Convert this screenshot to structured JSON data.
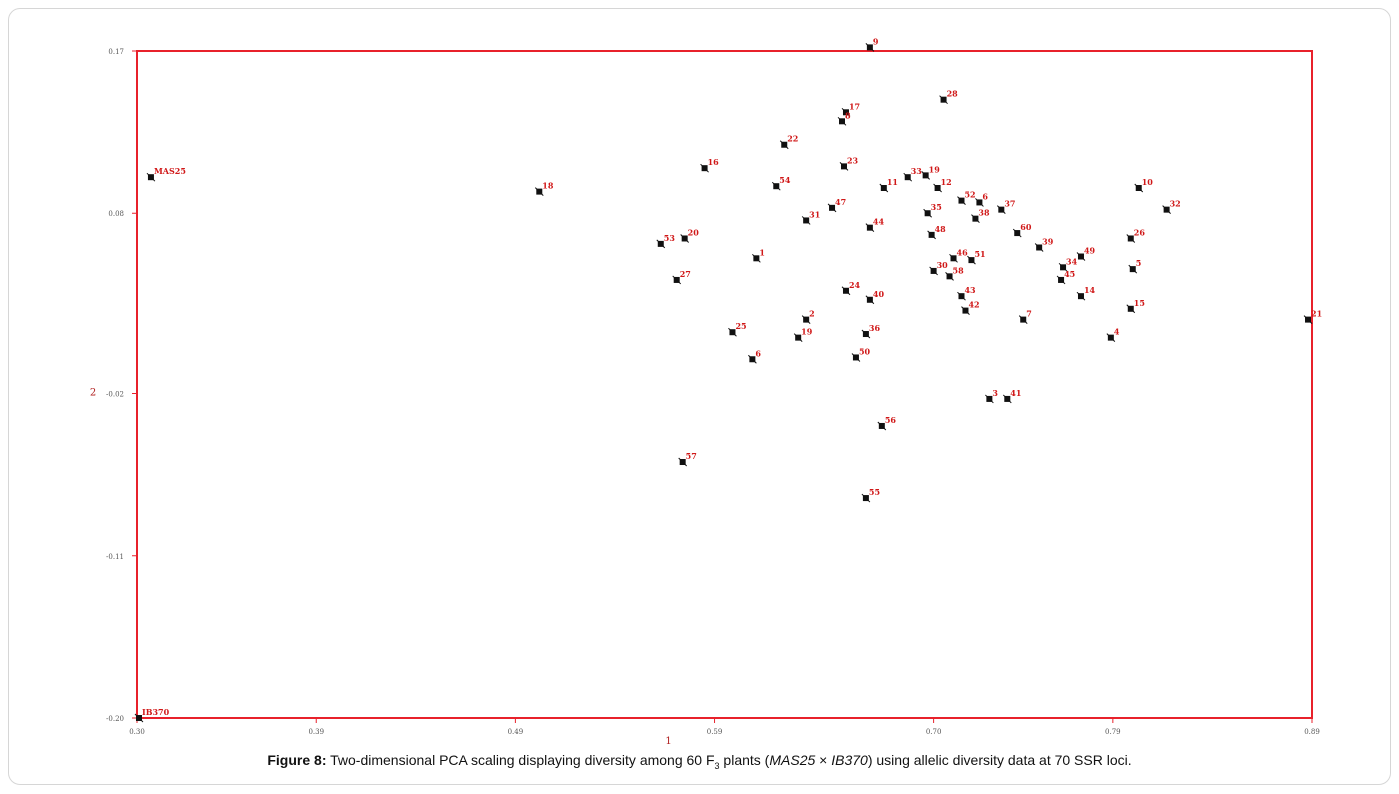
{
  "caption": {
    "label": "Figure 8:",
    "text_pre": "Two-dimensional PCA scaling displaying diversity among 60 F",
    "sub": "3",
    "text_mid": " plants (",
    "italic1": "MAS25",
    "times": " × ",
    "italic2": "IB370",
    "text_post": ") using allelic diversity data at 70 SSR loci."
  },
  "colors": {
    "axis": "#e8212b",
    "point": "#111111",
    "label": "#d01818",
    "tick_text": "#555555"
  },
  "chart_data": {
    "type": "scatter",
    "title": "",
    "xlabel": "1",
    "ylabel": "2",
    "xlim": [
      0.3,
      0.89
    ],
    "ylim": [
      -0.2,
      0.17
    ],
    "x_ticks": [
      0.3,
      0.39,
      0.49,
      0.59,
      0.7,
      0.79,
      0.89
    ],
    "x_tick_labels": [
      "0.30",
      "0.39",
      "0.49",
      "0.59",
      "0.70",
      "0.79",
      "0.89"
    ],
    "y_ticks": [
      -0.2,
      -0.11,
      -0.02,
      0.08,
      0.17
    ],
    "y_tick_labels": [
      "-0.20",
      "-0.11",
      "-0.02",
      "0.08",
      "0.17"
    ],
    "grid": false,
    "points": [
      {
        "label": "MAS25",
        "x": 0.307,
        "y": 0.1
      },
      {
        "label": "IB370",
        "x": 0.301,
        "y": -0.2
      },
      {
        "label": "18",
        "x": 0.502,
        "y": 0.092
      },
      {
        "label": "16",
        "x": 0.585,
        "y": 0.105
      },
      {
        "label": "22",
        "x": 0.625,
        "y": 0.118
      },
      {
        "label": "17",
        "x": 0.656,
        "y": 0.136
      },
      {
        "label": "8",
        "x": 0.654,
        "y": 0.131
      },
      {
        "label": "9",
        "x": 0.668,
        "y": 0.172
      },
      {
        "label": "28",
        "x": 0.705,
        "y": 0.143
      },
      {
        "label": "23",
        "x": 0.655,
        "y": 0.106
      },
      {
        "label": "33",
        "x": 0.687,
        "y": 0.1
      },
      {
        "label": "19",
        "x": 0.696,
        "y": 0.101
      },
      {
        "label": "54",
        "x": 0.621,
        "y": 0.095
      },
      {
        "label": "11",
        "x": 0.675,
        "y": 0.094
      },
      {
        "label": "12",
        "x": 0.702,
        "y": 0.094
      },
      {
        "label": "52",
        "x": 0.714,
        "y": 0.087
      },
      {
        "label": "6",
        "x": 0.723,
        "y": 0.086
      },
      {
        "label": "47",
        "x": 0.649,
        "y": 0.083
      },
      {
        "label": "37",
        "x": 0.734,
        "y": 0.082
      },
      {
        "label": "10",
        "x": 0.803,
        "y": 0.094
      },
      {
        "label": "32",
        "x": 0.817,
        "y": 0.082
      },
      {
        "label": "35",
        "x": 0.697,
        "y": 0.08
      },
      {
        "label": "31",
        "x": 0.636,
        "y": 0.076
      },
      {
        "label": "38",
        "x": 0.721,
        "y": 0.077
      },
      {
        "label": "44",
        "x": 0.668,
        "y": 0.072
      },
      {
        "label": "48",
        "x": 0.699,
        "y": 0.068
      },
      {
        "label": "60",
        "x": 0.742,
        "y": 0.069
      },
      {
        "label": "26",
        "x": 0.799,
        "y": 0.066
      },
      {
        "label": "20",
        "x": 0.575,
        "y": 0.066
      },
      {
        "label": "53",
        "x": 0.563,
        "y": 0.063
      },
      {
        "label": "39",
        "x": 0.753,
        "y": 0.061
      },
      {
        "label": "1",
        "x": 0.611,
        "y": 0.055
      },
      {
        "label": "46",
        "x": 0.71,
        "y": 0.055
      },
      {
        "label": "51",
        "x": 0.719,
        "y": 0.054
      },
      {
        "label": "49",
        "x": 0.774,
        "y": 0.056
      },
      {
        "label": "34",
        "x": 0.765,
        "y": 0.05
      },
      {
        "label": "5",
        "x": 0.8,
        "y": 0.049
      },
      {
        "label": "30",
        "x": 0.7,
        "y": 0.048
      },
      {
        "label": "58",
        "x": 0.708,
        "y": 0.045
      },
      {
        "label": "45",
        "x": 0.764,
        "y": 0.043
      },
      {
        "label": "27",
        "x": 0.571,
        "y": 0.043
      },
      {
        "label": "24",
        "x": 0.656,
        "y": 0.037
      },
      {
        "label": "43",
        "x": 0.714,
        "y": 0.034
      },
      {
        "label": "40",
        "x": 0.668,
        "y": 0.032
      },
      {
        "label": "14",
        "x": 0.774,
        "y": 0.034
      },
      {
        "label": "42",
        "x": 0.716,
        "y": 0.026
      },
      {
        "label": "15",
        "x": 0.799,
        "y": 0.027
      },
      {
        "label": "21",
        "x": 0.888,
        "y": 0.021
      },
      {
        "label": "7",
        "x": 0.745,
        "y": 0.021
      },
      {
        "label": "2",
        "x": 0.636,
        "y": 0.021
      },
      {
        "label": "25",
        "x": 0.599,
        "y": 0.014
      },
      {
        "label": "36",
        "x": 0.666,
        "y": 0.013
      },
      {
        "label": "19",
        "x": 0.632,
        "y": 0.011
      },
      {
        "label": "4",
        "x": 0.789,
        "y": 0.011
      },
      {
        "label": "6",
        "x": 0.609,
        "y": -0.001
      },
      {
        "label": "50",
        "x": 0.661,
        "y": 0.0
      },
      {
        "label": "3",
        "x": 0.728,
        "y": -0.023
      },
      {
        "label": "41",
        "x": 0.737,
        "y": -0.023
      },
      {
        "label": "56",
        "x": 0.674,
        "y": -0.038
      },
      {
        "label": "57",
        "x": 0.574,
        "y": -0.058
      },
      {
        "label": "55",
        "x": 0.666,
        "y": -0.078
      }
    ]
  }
}
